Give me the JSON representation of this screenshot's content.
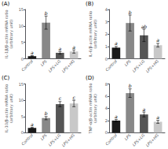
{
  "chart_data": [
    {
      "type": "bar",
      "title": "(A)",
      "ylabel": "IL-1β/β-actin mRNA ratio\n(arbitrary unit)",
      "categories": [
        "Control",
        "LPS",
        "LPS+LG",
        "LPS+HG"
      ],
      "values": [
        0.8,
        11.0,
        1.8,
        2.2
      ],
      "errors": [
        0.15,
        2.0,
        0.4,
        0.5
      ],
      "sig_labels": [
        "a",
        "b",
        "a",
        "a"
      ],
      "colors": [
        "#1a1a1a",
        "#888888",
        "#555555",
        "#c8c8c8"
      ],
      "ylim": [
        0,
        15
      ],
      "yticks": [
        0,
        5,
        10,
        15
      ],
      "grid": false
    },
    {
      "type": "bar",
      "title": "(B)",
      "ylabel": "IL-6/β-actin mRNA ratio\n(arbitrary unit)",
      "categories": [
        "Control",
        "LPS",
        "LPS+LG",
        "LPS+HG"
      ],
      "values": [
        0.9,
        2.9,
        1.9,
        1.1
      ],
      "errors": [
        0.1,
        0.65,
        0.5,
        0.15
      ],
      "sig_labels": [
        "a",
        "b",
        "ab",
        "a"
      ],
      "colors": [
        "#1a1a1a",
        "#888888",
        "#555555",
        "#c8c8c8"
      ],
      "ylim": [
        0,
        4
      ],
      "yticks": [
        0,
        1,
        2,
        3,
        4
      ],
      "grid": false
    },
    {
      "type": "bar",
      "title": "(C)",
      "ylabel": "IL-10/β-actin mRNA ratio\n(arbitrary unit)",
      "categories": [
        "Control",
        "LPS",
        "LPS+LG",
        "LPS+HG"
      ],
      "values": [
        1.5,
        4.5,
        8.8,
        9.0
      ],
      "errors": [
        0.2,
        0.5,
        0.8,
        1.0
      ],
      "sig_labels": [
        "a",
        "b",
        "c",
        "c"
      ],
      "colors": [
        "#1a1a1a",
        "#888888",
        "#555555",
        "#c8c8c8"
      ],
      "ylim": [
        0,
        15
      ],
      "yticks": [
        0,
        5,
        10,
        15
      ],
      "grid": false
    },
    {
      "type": "bar",
      "title": "(D)",
      "ylabel": "TNF-α/β-actin mRNA ratio\n(arbitrary unit)",
      "categories": [
        "Control",
        "LPS",
        "LPS+LG",
        "LPS+HG"
      ],
      "values": [
        2.0,
        6.5,
        3.0,
        1.8
      ],
      "errors": [
        0.2,
        0.7,
        0.4,
        0.25
      ],
      "sig_labels": [
        "a",
        "b",
        "a",
        "a"
      ],
      "colors": [
        "#1a1a1a",
        "#888888",
        "#555555",
        "#c8c8c8"
      ],
      "ylim": [
        0,
        8
      ],
      "yticks": [
        0,
        2,
        4,
        6,
        8
      ],
      "grid": false
    }
  ]
}
